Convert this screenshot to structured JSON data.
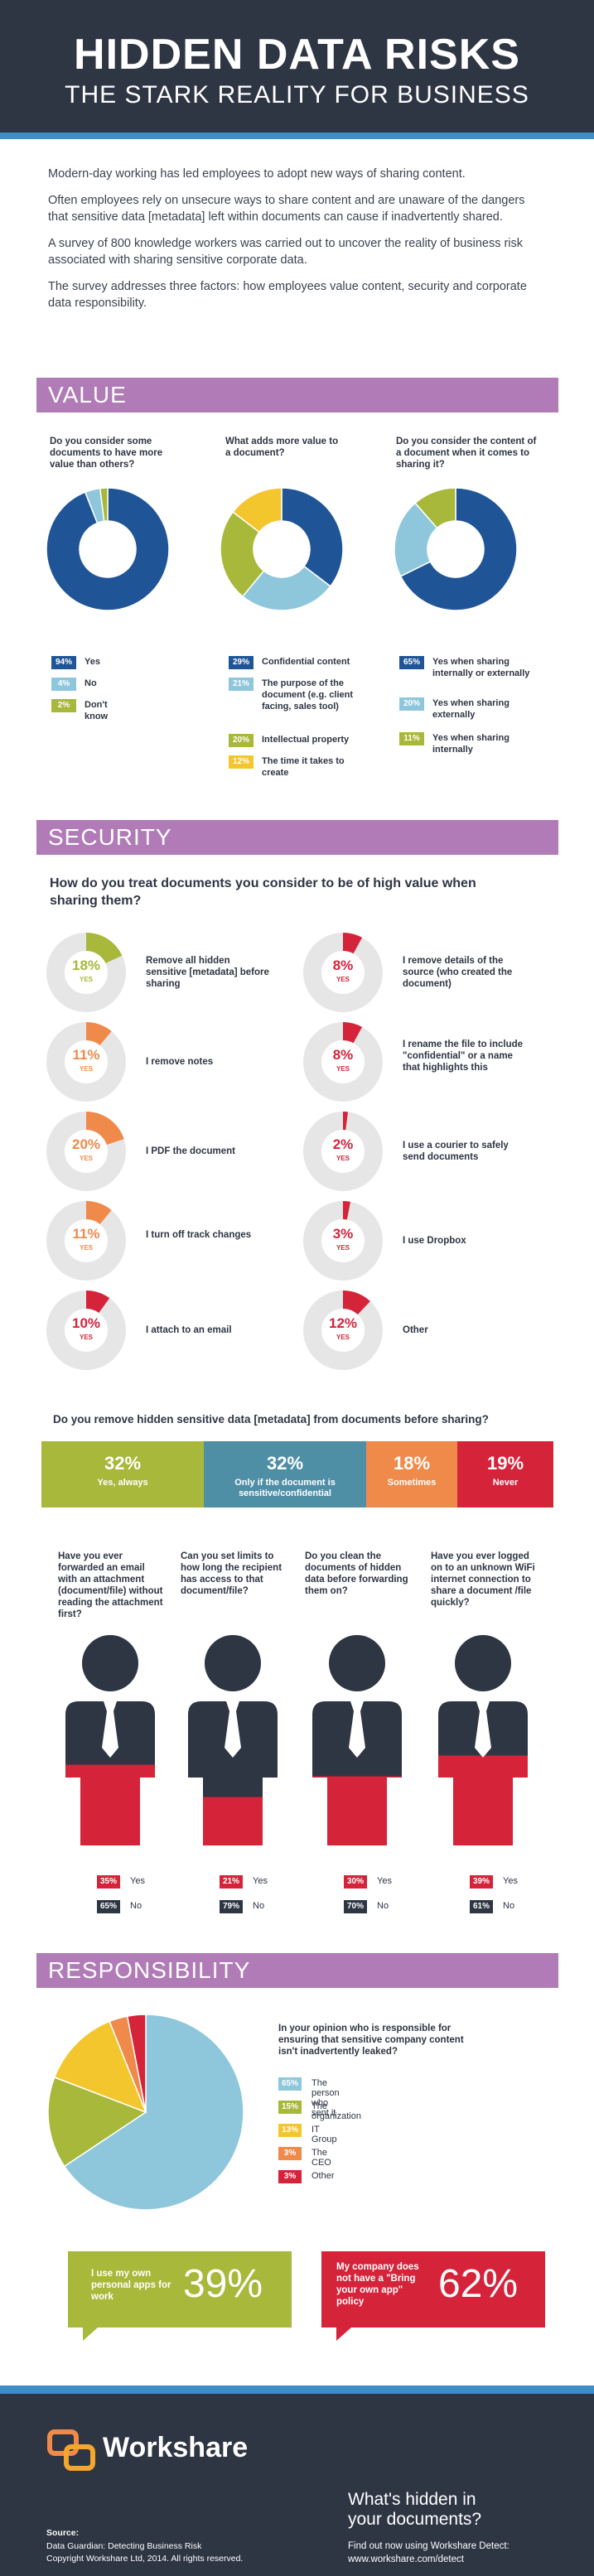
{
  "header": {
    "title": "HIDDEN DATA RISKS",
    "subtitle": "THE STARK REALITY FOR BUSINESS"
  },
  "intro": [
    "Modern-day working has led employees to adopt new ways of sharing content.",
    "Often employees rely on unsecure ways to share content and are unaware of the dangers that sensitive data [metadata] left within documents can cause if inadvertently shared.",
    "A survey of 800 knowledge workers was carried out to uncover the reality of business risk associated with sharing sensitive corporate data.",
    "The survey addresses three factors: how employees value content, security and corporate data responsibility."
  ],
  "sections": {
    "value": "VALUE",
    "security": "SECURITY",
    "responsibility": "RESPONSIBILITY"
  },
  "colors": {
    "navy": "#1f5597",
    "lightblue": "#8ec7dc",
    "olive": "#a8b83a",
    "yellow": "#f4c62d",
    "orange": "#ef8a4b",
    "red": "#d5233a",
    "teal": "#4f8fa6",
    "grey": "#e6e6e6",
    "dark": "#2e3543"
  },
  "chart_data": [
    {
      "type": "pie",
      "title": "Do you consider some documents to have more value than others?",
      "slices": [
        {
          "label": "Yes",
          "value": 94,
          "badge": "94%",
          "color": "#1f5597"
        },
        {
          "label": "No",
          "value": 4,
          "badge": "4%",
          "color": "#8ec7dc"
        },
        {
          "label": "Don't know",
          "value": 2,
          "badge": "2%",
          "color": "#a8b83a"
        }
      ]
    },
    {
      "type": "pie",
      "title": "What adds more value to a document?",
      "slices": [
        {
          "label": "Confidential content",
          "value": 29,
          "badge": "29%",
          "color": "#1f5597"
        },
        {
          "label": "The purpose of the document (e.g. client facing, sales tool)",
          "value": 21,
          "badge": "21%",
          "color": "#8ec7dc"
        },
        {
          "label": "Intellectual property",
          "value": 20,
          "badge": "20%",
          "color": "#a8b83a"
        },
        {
          "label": "The time it takes to create",
          "value": 12,
          "badge": "12%",
          "color": "#f4c62d"
        }
      ]
    },
    {
      "type": "pie",
      "title": "Do you consider the content of a document when it comes to sharing it?",
      "slices": [
        {
          "label": "Yes when sharing internally or externally",
          "value": 65,
          "badge": "65%",
          "color": "#1f5597"
        },
        {
          "label": "Yes when sharing externally",
          "value": 20,
          "badge": "20%",
          "color": "#8ec7dc"
        },
        {
          "label": "Yes when sharing internally",
          "value": 11,
          "badge": "11%",
          "color": "#a8b83a"
        }
      ]
    },
    {
      "type": "pie",
      "title": "How do you treat documents you consider to be of high value when sharing them?",
      "yes_label": "YES",
      "items": [
        {
          "label": "Remove all hidden sensitive [metadata] before sharing",
          "value": 18,
          "text": "18%",
          "color": "#a8b83a"
        },
        {
          "label": "I remove notes",
          "value": 11,
          "text": "11%",
          "color": "#ef8a4b"
        },
        {
          "label": "I PDF the document",
          "value": 20,
          "text": "20%",
          "color": "#ef8a4b"
        },
        {
          "label": "I turn off track changes",
          "value": 11,
          "text": "11%",
          "color": "#ef8a4b"
        },
        {
          "label": "I attach to an email",
          "value": 10,
          "text": "10%",
          "color": "#d5233a"
        },
        {
          "label": "I remove details of the source (who created the document)",
          "value": 8,
          "text": "8%",
          "color": "#d5233a"
        },
        {
          "label": "I rename the file to include \"confidential\" or a name that highlights this",
          "value": 8,
          "text": "8%",
          "color": "#d5233a"
        },
        {
          "label": "I use a courier to safely send documents",
          "value": 2,
          "text": "2%",
          "color": "#d5233a"
        },
        {
          "label": "I use Dropbox",
          "value": 3,
          "text": "3%",
          "color": "#d5233a"
        },
        {
          "label": "Other",
          "value": 12,
          "text": "12%",
          "color": "#d5233a"
        }
      ]
    },
    {
      "type": "bar",
      "title": "Do you remove hidden sensitive data [metadata] from documents before sharing?",
      "segments": [
        {
          "label": "Yes, always",
          "value": 32,
          "text": "32%",
          "color": "#a8b83a"
        },
        {
          "label": "Only if the document is sensitive/confidential",
          "value": 32,
          "text": "32%",
          "color": "#4f8fa6"
        },
        {
          "label": "Sometimes",
          "value": 18,
          "text": "18%",
          "color": "#ef8a4b"
        },
        {
          "label": "Never",
          "value": 19,
          "text": "19%",
          "color": "#d5233a"
        }
      ]
    },
    {
      "type": "bar",
      "series_labels": {
        "yes": "Yes",
        "no": "No"
      },
      "questions": [
        {
          "question": "Have you ever forwarded an email with an attachment (document/file) without reading the attachment first?",
          "yes": 35,
          "no": 65,
          "yes_text": "35%",
          "no_text": "65%"
        },
        {
          "question": "Can you set limits to how long the recipient has access to that document/file?",
          "yes": 21,
          "no": 79,
          "yes_text": "21%",
          "no_text": "79%"
        },
        {
          "question": "Do you clean the documents of hidden data before forwarding them on?",
          "yes": 30,
          "no": 70,
          "yes_text": "30%",
          "no_text": "70%"
        },
        {
          "question": "Have you ever logged on to an unknown WiFi internet connection to share a document /file quickly?",
          "yes": 39,
          "no": 61,
          "yes_text": "39%",
          "no_text": "61%"
        }
      ]
    },
    {
      "type": "pie",
      "title": "In your opinion who is responsible for ensuring that sensitive company content isn't inadvertently leaked?",
      "slices": [
        {
          "label": "The person who sent it",
          "value": 65,
          "badge": "65%",
          "color": "#8ec7dc"
        },
        {
          "label": "The organization",
          "value": 15,
          "badge": "15%",
          "color": "#a8b83a"
        },
        {
          "label": "IT Group",
          "value": 13,
          "badge": "13%",
          "color": "#f4c62d"
        },
        {
          "label": "The CEO",
          "value": 3,
          "badge": "3%",
          "color": "#ef8a4b"
        },
        {
          "label": "Other",
          "value": 3,
          "badge": "3%",
          "color": "#d5233a"
        }
      ]
    }
  ],
  "stats": {
    "own_apps": {
      "label": "I use my own personal apps for work",
      "value": "39%"
    },
    "no_byoa": {
      "label": "My company does not have a \"Bring your own app\" policy",
      "value": "62%"
    }
  },
  "footer": {
    "brand": "Workshare",
    "tagline1": "What's hidden in",
    "tagline2": "your documents?",
    "cta1": "Find out now using Workshare Detect:",
    "cta2": "www.workshare.com/detect",
    "source_title": "Source:",
    "source1": "Data Guardian: Detecting Business Risk",
    "source2": "Copyright Workshare Ltd, 2014. All rights reserved."
  }
}
